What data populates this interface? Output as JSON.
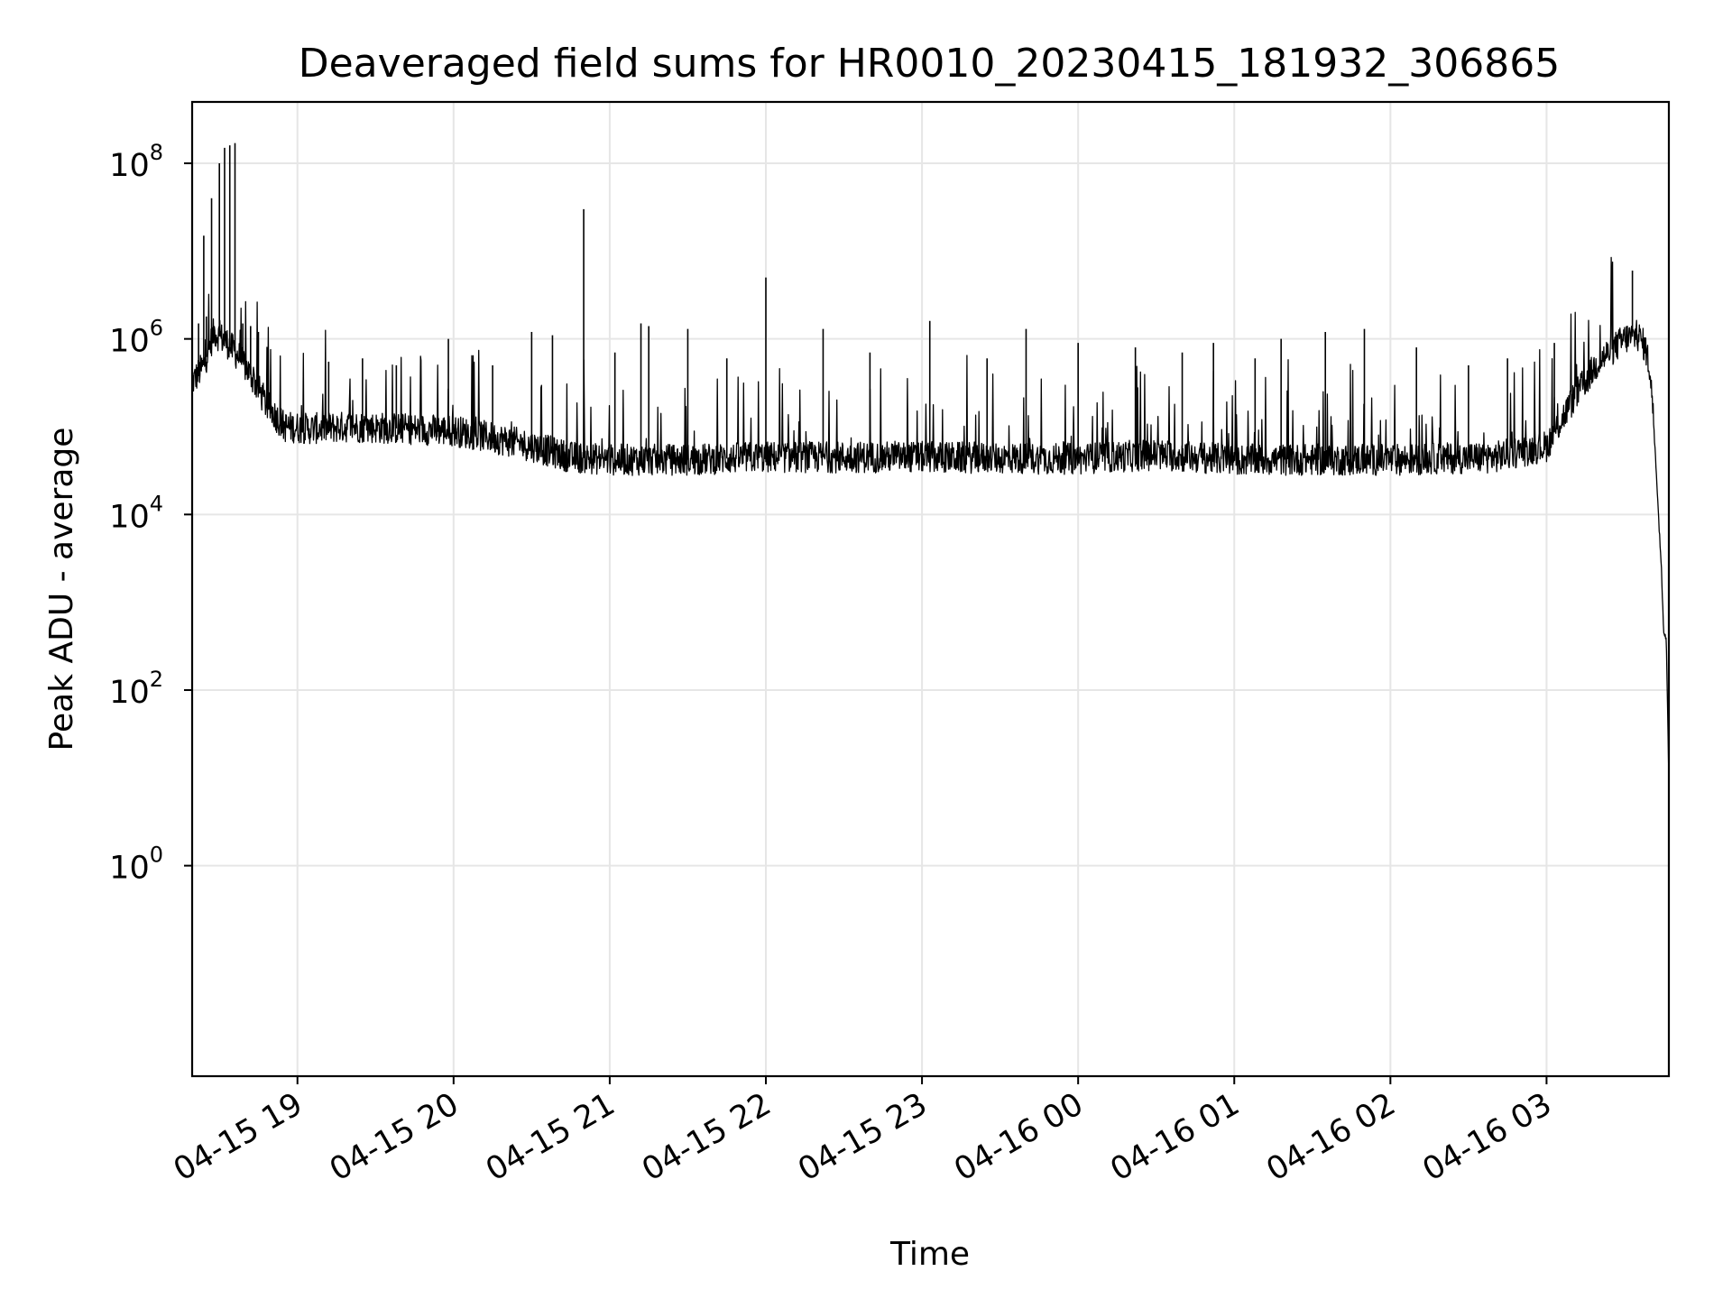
{
  "chart_data": {
    "type": "line",
    "title": "Deaveraged field sums for HR0010_20230415_181932_306865",
    "xlabel": "Time",
    "ylabel": "Peak ADU - average",
    "y_scale": "log",
    "ylim": [
      0.004,
      500000000
    ],
    "xlim": [
      "04-15 18:19:32",
      "04-16 03:47"
    ],
    "grid": true,
    "line_color": "#000000",
    "y_ticks": [
      {
        "value": 1,
        "base": "10",
        "exp": "0"
      },
      {
        "value": 100,
        "base": "10",
        "exp": "2"
      },
      {
        "value": 10000,
        "base": "10",
        "exp": "4"
      },
      {
        "value": 1000000,
        "base": "10",
        "exp": "6"
      },
      {
        "value": 100000000,
        "base": "10",
        "exp": "8"
      }
    ],
    "x_ticks": [
      {
        "time": "04-15 19:00",
        "label": "04-15 19"
      },
      {
        "time": "04-15 20:00",
        "label": "04-15 20"
      },
      {
        "time": "04-15 21:00",
        "label": "04-15 21"
      },
      {
        "time": "04-15 22:00",
        "label": "04-15 22"
      },
      {
        "time": "04-15 23:00",
        "label": "04-15 23"
      },
      {
        "time": "04-16 00:00",
        "label": "04-16 00"
      },
      {
        "time": "04-16 01:00",
        "label": "04-16 01"
      },
      {
        "time": "04-16 02:00",
        "label": "04-16 02"
      },
      {
        "time": "04-16 03:00",
        "label": "04-16 03"
      }
    ],
    "baseline": [
      [
        "04-15 18:19",
        300000
      ],
      [
        "04-15 18:24",
        500000
      ],
      [
        "04-15 18:28",
        1200000
      ],
      [
        "04-15 18:33",
        900000
      ],
      [
        "04-15 18:38",
        600000
      ],
      [
        "04-15 18:43",
        350000
      ],
      [
        "04-15 18:48",
        180000
      ],
      [
        "04-15 18:55",
        100000
      ],
      [
        "04-15 19:05",
        95000
      ],
      [
        "04-15 19:20",
        100000
      ],
      [
        "04-15 19:40",
        95000
      ],
      [
        "04-15 20:00",
        90000
      ],
      [
        "04-15 20:15",
        75000
      ],
      [
        "04-15 20:30",
        60000
      ],
      [
        "04-15 20:45",
        45000
      ],
      [
        "04-15 21:00",
        42000
      ],
      [
        "04-15 21:30",
        42000
      ],
      [
        "04-15 22:00",
        45000
      ],
      [
        "04-15 23:00",
        45000
      ],
      [
        "04-16 00:00",
        43000
      ],
      [
        "04-16 00:30",
        48000
      ],
      [
        "04-16 01:00",
        42000
      ],
      [
        "04-16 02:00",
        42000
      ],
      [
        "04-16 02:40",
        45000
      ],
      [
        "04-16 03:00",
        60000
      ],
      [
        "04-16 03:10",
        200000
      ],
      [
        "04-16 03:20",
        550000
      ],
      [
        "04-16 03:30",
        1000000
      ],
      [
        "04-16 03:35",
        1100000
      ],
      [
        "04-16 03:38",
        800000
      ],
      [
        "04-16 03:40",
        400000
      ],
      [
        "04-16 03:42",
        40000
      ],
      [
        "04-16 03:43",
        10000
      ],
      [
        "04-16 03:44",
        3000
      ],
      [
        "04-16 03:45",
        500
      ],
      [
        "04-16 03:46",
        400
      ],
      [
        "04-16 03:47",
        10
      ]
    ],
    "spikes": [
      [
        "04-15 18:22",
        1500000
      ],
      [
        "04-15 18:24",
        15000000
      ],
      [
        "04-15 18:25",
        1800000
      ],
      [
        "04-15 18:27",
        40000000
      ],
      [
        "04-15 18:30",
        100000000
      ],
      [
        "04-15 18:32",
        150000000
      ],
      [
        "04-15 18:34",
        160000000
      ],
      [
        "04-15 18:36",
        170000000
      ],
      [
        "04-15 18:39",
        1500000
      ],
      [
        "04-15 18:42",
        1400000
      ],
      [
        "04-15 18:45",
        1200000
      ],
      [
        "04-15 19:12",
        550000
      ],
      [
        "04-15 19:25",
        600000
      ],
      [
        "04-15 19:38",
        500000
      ],
      [
        "04-15 19:58",
        1000000
      ],
      [
        "04-15 20:15",
        500000
      ],
      [
        "04-15 20:30",
        1200000
      ],
      [
        "04-15 20:38",
        1100000
      ],
      [
        "04-15 20:50",
        30000000
      ],
      [
        "04-15 21:02",
        700000
      ],
      [
        "04-15 21:12",
        1500000
      ],
      [
        "04-15 21:15",
        1400000
      ],
      [
        "04-15 21:30",
        1300000
      ],
      [
        "04-15 21:45",
        600000
      ],
      [
        "04-15 22:00",
        5000000
      ],
      [
        "04-15 22:22",
        1300000
      ],
      [
        "04-15 22:40",
        700000
      ],
      [
        "04-15 23:03",
        1600000
      ],
      [
        "04-15 23:25",
        600000
      ],
      [
        "04-15 23:40",
        1300000
      ],
      [
        "04-16 00:00",
        900000
      ],
      [
        "04-16 00:22",
        800000
      ],
      [
        "04-16 00:40",
        700000
      ],
      [
        "04-16 00:52",
        900000
      ],
      [
        "04-16 01:08",
        600000
      ],
      [
        "04-16 01:18",
        1000000
      ],
      [
        "04-16 01:35",
        1200000
      ],
      [
        "04-16 01:50",
        1300000
      ],
      [
        "04-16 02:10",
        800000
      ],
      [
        "04-16 02:30",
        500000
      ],
      [
        "04-16 02:45",
        600000
      ],
      [
        "04-16 03:03",
        900000
      ],
      [
        "04-16 03:33",
        6000000
      ]
    ]
  }
}
